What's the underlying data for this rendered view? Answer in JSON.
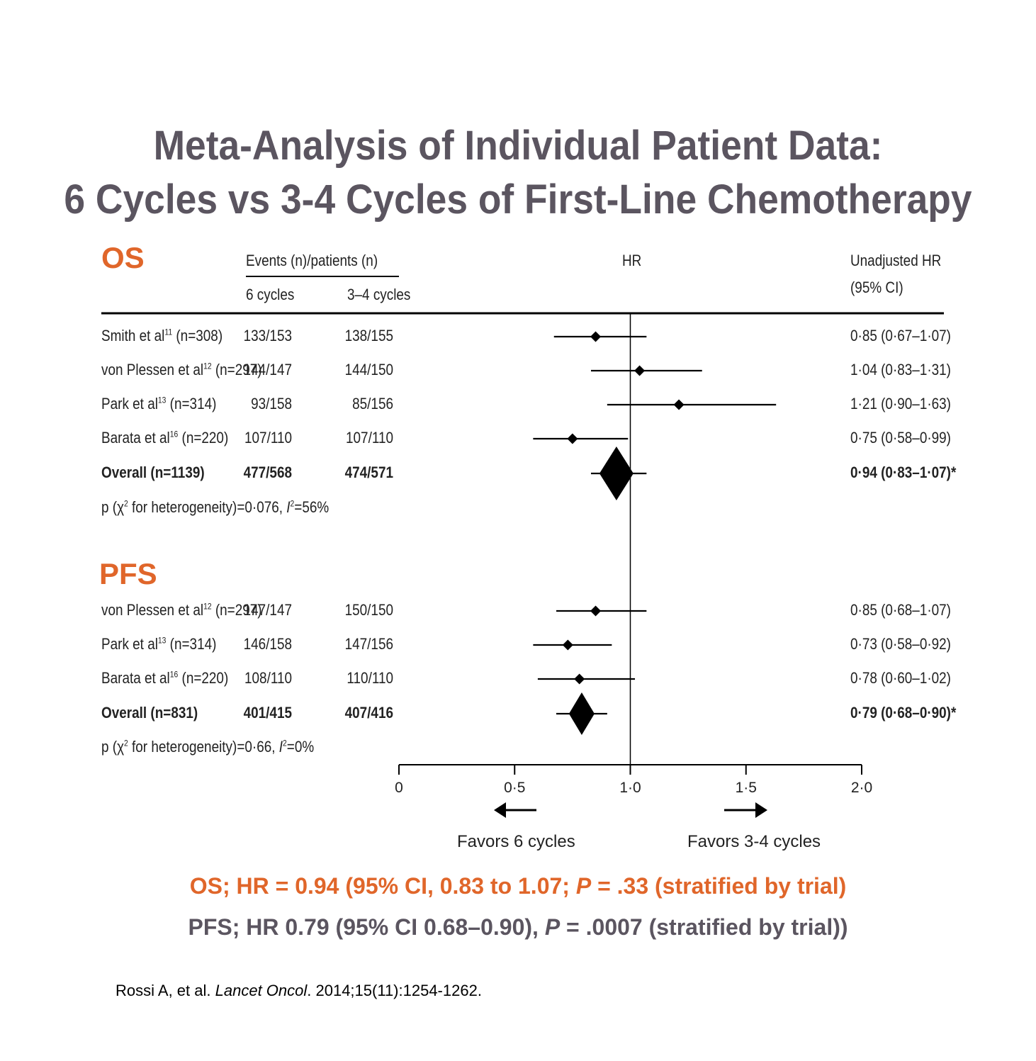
{
  "title_line1": "Meta-Analysis of Individual Patient Data:",
  "title_line2": "6 Cycles vs 3-4 Cycles of First-Line Chemotherapy",
  "headers": {
    "events": "Events (n)/patients (n)",
    "six": "6 cycles",
    "threefour": "3–4 cycles",
    "hr": "HR",
    "unadj1": "Unadjusted HR",
    "unadj2": "(95% CI)"
  },
  "chart_data": {
    "type": "forest",
    "xlim": [
      0,
      2.0
    ],
    "reference": 1.0,
    "ticks": [
      "0",
      "0·5",
      "1·0",
      "1·5",
      "2·0"
    ],
    "tick_values": [
      0,
      0.5,
      1.0,
      1.5,
      2.0
    ],
    "favors_left": "Favors 6 cycles",
    "favors_right": "Favors 3-4 cycles",
    "sections": [
      {
        "name": "OS",
        "rows": [
          {
            "study": "Smith et al",
            "ref": "11",
            "n": "(n=308)",
            "six": "133/153",
            "threefour": "138/155",
            "hr": 0.85,
            "lo": 0.67,
            "hi": 1.07,
            "label": "0·85 (0·67–1·07)",
            "overall": false
          },
          {
            "study": "von Plessen et al",
            "ref": "12",
            "n": "(n=297)",
            "six": "144/147",
            "threefour": "144/150",
            "hr": 1.04,
            "lo": 0.83,
            "hi": 1.31,
            "label": "1·04 (0·83–1·31)",
            "overall": false
          },
          {
            "study": "Park et al",
            "ref": "13",
            "n": "(n=314)",
            "six": "93/158",
            "threefour": "85/156",
            "hr": 1.21,
            "lo": 0.9,
            "hi": 1.63,
            "label": "1·21 (0·90–1·63)",
            "overall": false
          },
          {
            "study": "Barata et al",
            "ref": "16",
            "n": "(n=220)",
            "six": "107/110",
            "threefour": "107/110",
            "hr": 0.75,
            "lo": 0.58,
            "hi": 0.99,
            "label": "0·75 (0·58–0·99)",
            "overall": false
          },
          {
            "study": "Overall (n=1139)",
            "ref": "",
            "n": "",
            "six": "477/568",
            "threefour": "474/571",
            "hr": 0.94,
            "lo": 0.83,
            "hi": 1.07,
            "label": "0·94 (0·83–1·07)*",
            "overall": true
          }
        ],
        "het_pre": "p (χ",
        "het_post": " for heterogeneity)=0·076, ",
        "het_i2": "=56%"
      },
      {
        "name": "PFS",
        "rows": [
          {
            "study": "von Plessen et al",
            "ref": "12",
            "n": "(n=297)",
            "six": "147/147",
            "threefour": "150/150",
            "hr": 0.85,
            "lo": 0.68,
            "hi": 1.07,
            "label": "0·85 (0·68–1·07)",
            "overall": false
          },
          {
            "study": "Park et al",
            "ref": "13",
            "n": "(n=314)",
            "six": "146/158",
            "threefour": "147/156",
            "hr": 0.73,
            "lo": 0.58,
            "hi": 0.92,
            "label": "0·73 (0·58–0·92)",
            "overall": false
          },
          {
            "study": "Barata et al",
            "ref": "16",
            "n": "(n=220)",
            "six": "108/110",
            "threefour": "110/110",
            "hr": 0.78,
            "lo": 0.6,
            "hi": 1.02,
            "label": "0·78 (0·60–1·02)",
            "overall": false
          },
          {
            "study": "Overall (n=831)",
            "ref": "",
            "n": "",
            "six": "401/415",
            "threefour": "407/416",
            "hr": 0.79,
            "lo": 0.68,
            "hi": 0.9,
            "label": "0·79 (0·68–0·90)*",
            "overall": true
          }
        ],
        "het_pre": "p (χ",
        "het_post": " for heterogeneity)=0·66, ",
        "het_i2": "=0%"
      }
    ]
  },
  "summary_os": {
    "pre": "OS; HR = 0.94 (95% CI, 0.83 to 1.07; ",
    "p": "P",
    "post": " = .33 (stratified by trial)"
  },
  "summary_pfs": {
    "pre": "PFS; HR 0.79 (95% CI 0.68–0.90), ",
    "p": "P",
    "post": " = .0007 (stratified by trial))"
  },
  "citation": {
    "pre": "Rossi A, et al. ",
    "journal": "Lancet Oncol",
    "post": ". 2014;15(11):1254-1262."
  },
  "colors": {
    "accent": "#e0662a",
    "title": "#5b5560",
    "ink": "#000000"
  }
}
